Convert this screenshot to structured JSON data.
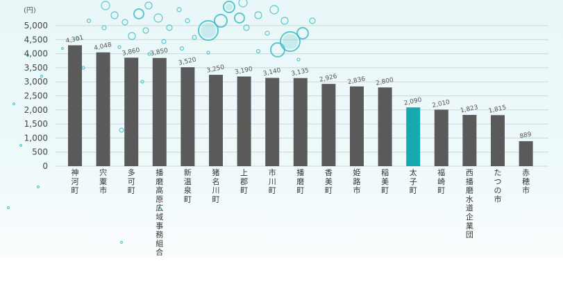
{
  "chart_data": {
    "type": "bar",
    "unit_label": "(円)",
    "ylim": [
      0,
      5000
    ],
    "yticks": [
      "5,000",
      "4,500",
      "4,000",
      "3,500",
      "3,000",
      "2,500",
      "2,000",
      "1,500",
      "1,000",
      "500",
      "0"
    ],
    "categories": [
      "神河町",
      "宍粟市",
      "多可町",
      "播磨高原広域事務組合",
      "新温泉町",
      "猪名川町",
      "上郡町",
      "市川町",
      "播磨町",
      "香美町",
      "姫路市",
      "稲美町",
      "太子町",
      "福崎町",
      "西播磨水道企業団",
      "たつの市",
      "赤穂市"
    ],
    "values": [
      4301,
      4048,
      3860,
      3850,
      3520,
      3250,
      3190,
      3140,
      3135,
      2926,
      2836,
      2800,
      2090,
      2010,
      1823,
      1815,
      889
    ],
    "data_labels": [
      "4,301",
      "4,048",
      "3,860",
      "3,850",
      "3,520",
      "3,250",
      "3,190",
      "3,140",
      "3,135",
      "2,926",
      "2,836",
      "2,800",
      "2,090",
      "2,010",
      "1,823",
      "1,815",
      "889"
    ],
    "highlight_category": "太子町",
    "colors": {
      "bar": "#5a5a5a",
      "highlight": "#17a9b0",
      "grid": "#cdd6d8",
      "text": "#444444",
      "bubble": "#2bb5bd"
    },
    "grid": true
  }
}
